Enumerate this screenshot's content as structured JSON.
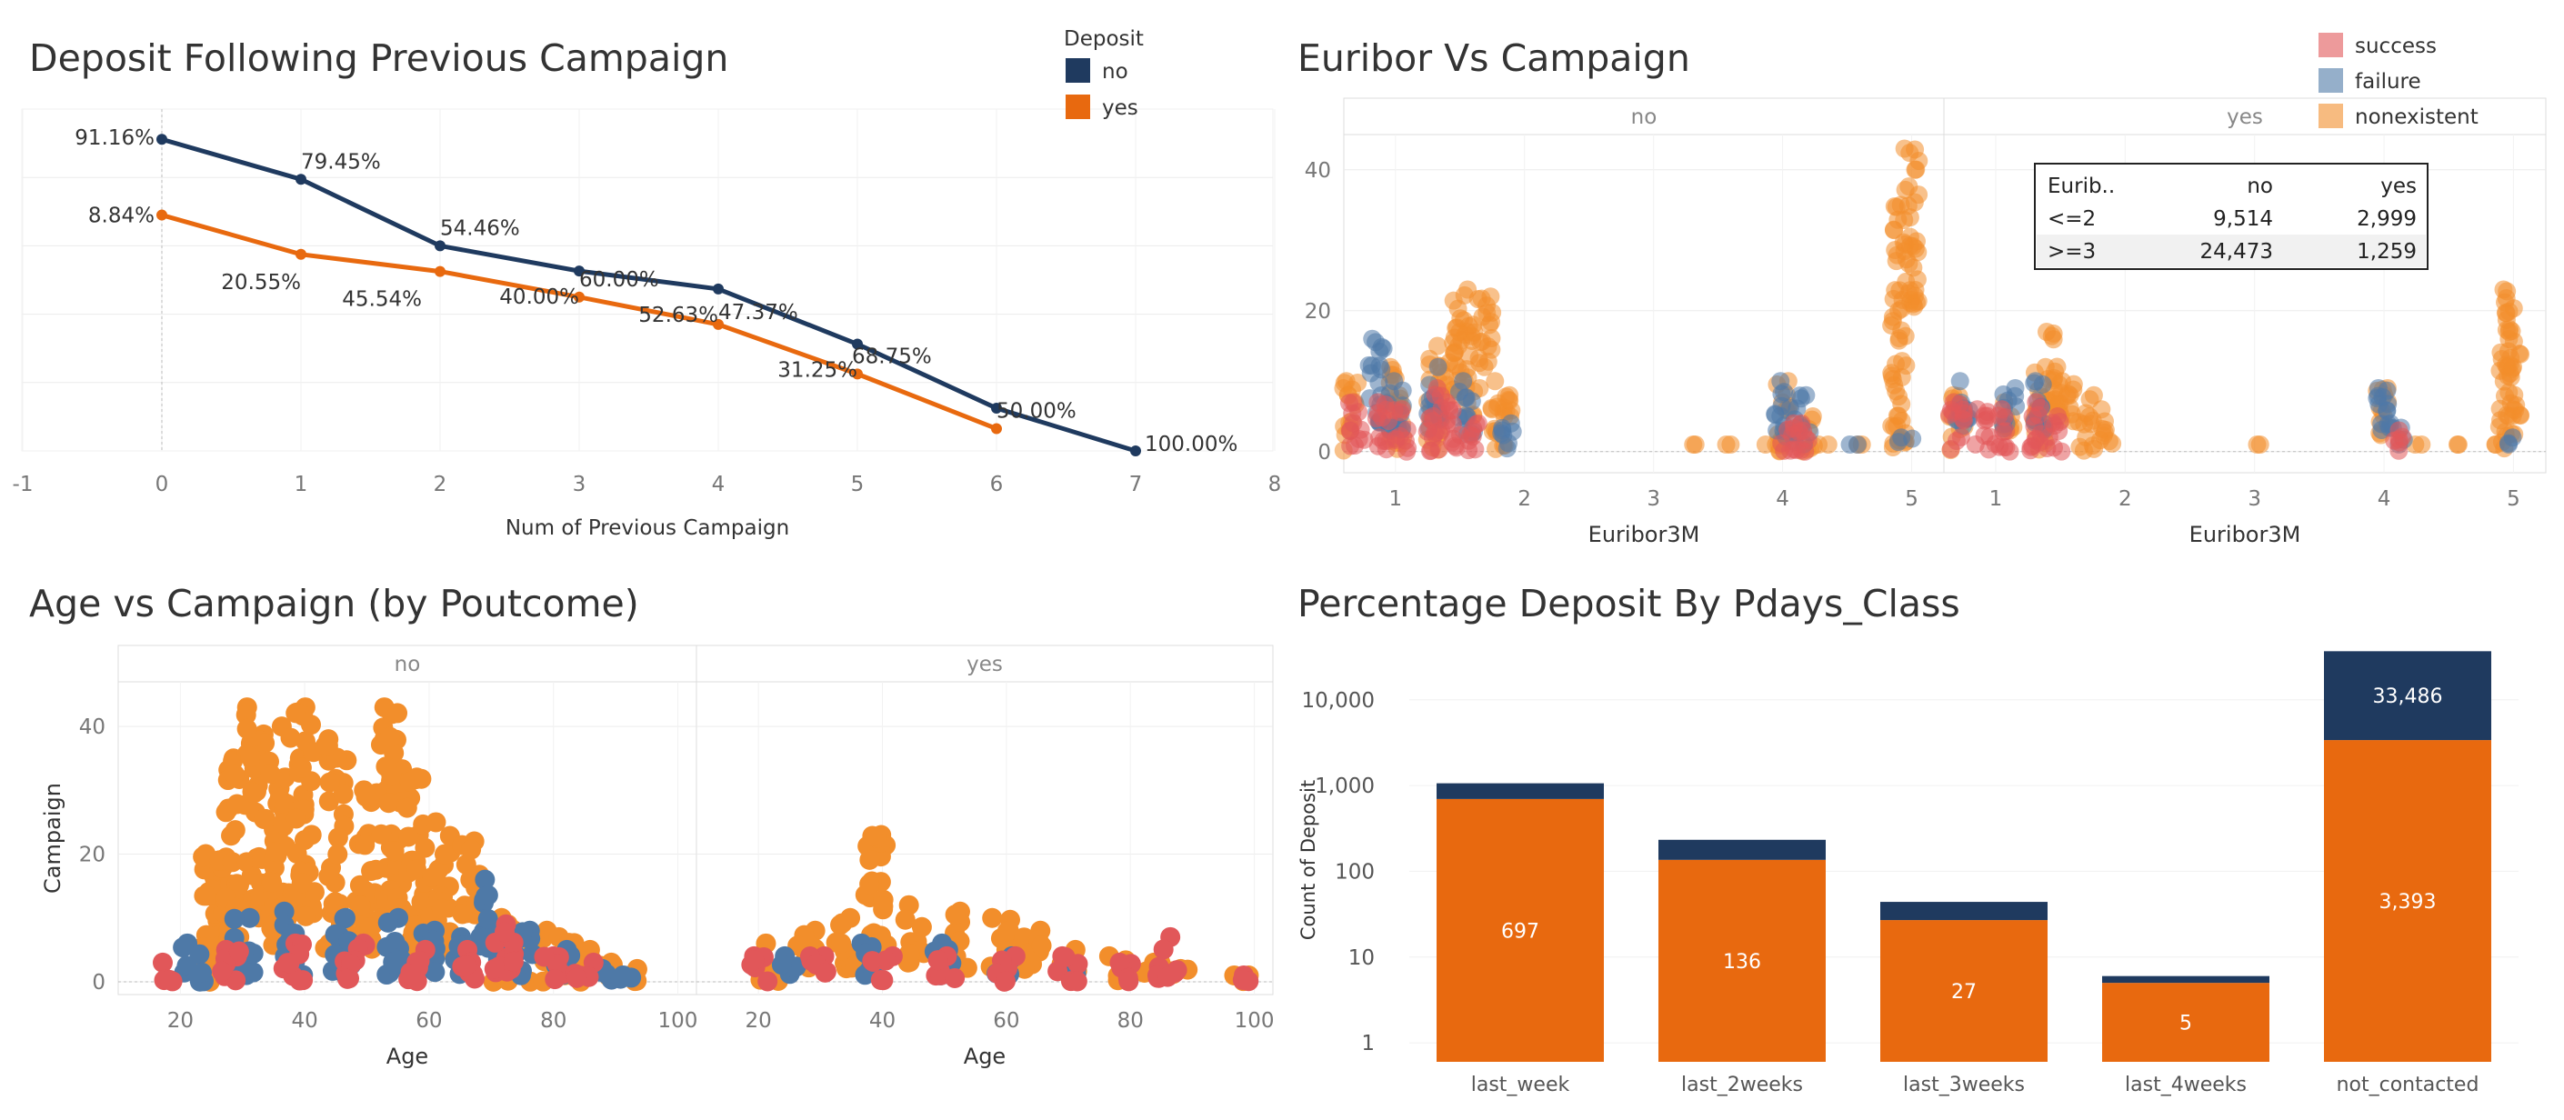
{
  "colors": {
    "no": "#1f3a5f",
    "yes": "#e8690f",
    "success": "#e15759",
    "failure": "#4e79a7",
    "nonexistent": "#f28e2b",
    "grid": "#ececec",
    "axis_text": "#777777"
  },
  "chart_data": [
    {
      "type": "line",
      "title": "Deposit Following Previous Campaign",
      "xlabel": "Num of Previous Campaign",
      "ylabel": "",
      "xlim": [
        -1,
        8
      ],
      "ylim": [
        0,
        100
      ],
      "x_ticks": [
        "-1",
        "0",
        "1",
        "2",
        "3",
        "4",
        "5",
        "6",
        "7",
        "8"
      ],
      "legend": {
        "title": "Deposit",
        "position": "top-right",
        "items": [
          "no",
          "yes"
        ]
      },
      "x": [
        0,
        1,
        2,
        3,
        4,
        5,
        6,
        7
      ],
      "series": [
        {
          "name": "no",
          "values": [
            91.16,
            79.45,
            54.46,
            40.0,
            52.63,
            31.25,
            50.0,
            100.0
          ],
          "labels": [
            "91.16%",
            "79.45%",
            "54.46%",
            "40.00%",
            "52.63%",
            "31.25%",
            "",
            "100.00%"
          ],
          "plot_y": [
            91.16,
            79.45,
            60.0,
            52.63,
            47.37,
            31.25,
            12.5,
            0.0
          ]
        },
        {
          "name": "yes",
          "values": [
            8.84,
            20.55,
            45.54,
            60.0,
            47.37,
            68.75,
            50.0,
            0.0
          ],
          "labels": [
            "8.84%",
            "20.55%",
            "45.54%",
            "60.00%",
            "47.37%",
            "68.75%",
            "50.00%",
            ""
          ],
          "plot_y": [
            69.0,
            57.5,
            52.5,
            45.0,
            37.0,
            22.5,
            6.5,
            null
          ]
        }
      ]
    },
    {
      "type": "scatter",
      "title": "Euribor Vs Campaign",
      "xlabel": "Euribor3M",
      "ylabel": "",
      "facets": [
        "no",
        "yes"
      ],
      "x_ticks": [
        "1",
        "2",
        "3",
        "4",
        "5"
      ],
      "y_ticks": [
        "0",
        "20",
        "40"
      ],
      "xlim": [
        0.6,
        5.25
      ],
      "ylim": [
        -3,
        45
      ],
      "legend": {
        "position": "top-right",
        "items": [
          "success",
          "failure",
          "nonexistent"
        ]
      },
      "table": {
        "headers": [
          "Eurib..",
          "no",
          "yes"
        ],
        "rows": [
          [
            "<=2",
            "9,514",
            "2,999"
          ],
          [
            ">=3",
            "24,473",
            "1,259"
          ]
        ]
      },
      "groups": {
        "no": {
          "nonexistent": [
            [
              0.65,
              0,
              10
            ],
            [
              1.0,
              0,
              8
            ],
            [
              1.0,
              5,
              12
            ],
            [
              1.3,
              0,
              15
            ],
            [
              1.4,
              8,
              14
            ],
            [
              1.5,
              10,
              23
            ],
            [
              1.6,
              5,
              18
            ],
            [
              1.7,
              12,
              22
            ],
            [
              1.8,
              0,
              10
            ],
            [
              1.9,
              5,
              8
            ],
            [
              3.3,
              1,
              1
            ],
            [
              3.6,
              1,
              1
            ],
            [
              3.9,
              1,
              1
            ],
            [
              4.0,
              0,
              10
            ],
            [
              4.2,
              0,
              5
            ],
            [
              4.3,
              1,
              1
            ],
            [
              4.6,
              1,
              1
            ],
            [
              4.9,
              0,
              35
            ],
            [
              5.0,
              20,
              43
            ]
          ],
          "failure": [
            [
              0.85,
              4,
              16
            ],
            [
              1.0,
              3,
              10
            ],
            [
              1.3,
              3,
              12
            ],
            [
              1.55,
              2,
              10
            ],
            [
              1.85,
              0,
              4
            ],
            [
              4.0,
              2,
              10
            ],
            [
              4.15,
              1,
              8
            ],
            [
              4.55,
              1,
              1
            ],
            [
              4.95,
              1,
              2
            ]
          ],
          "success": [
            [
              0.7,
              0,
              7
            ],
            [
              0.9,
              0,
              7
            ],
            [
              1.05,
              0,
              6
            ],
            [
              1.3,
              0,
              9
            ],
            [
              1.45,
              0,
              7
            ],
            [
              1.6,
              0,
              4
            ],
            [
              4.05,
              0,
              4
            ],
            [
              4.15,
              0,
              4
            ]
          ]
        },
        "yes": {
          "nonexistent": [
            [
              0.7,
              0,
              8
            ],
            [
              1.1,
              2,
              7
            ],
            [
              1.35,
              0,
              12
            ],
            [
              1.45,
              5,
              17
            ],
            [
              1.55,
              3,
              10
            ],
            [
              1.7,
              0,
              8
            ],
            [
              1.85,
              1,
              6
            ],
            [
              3.0,
              1,
              1
            ],
            [
              4.0,
              2,
              9
            ],
            [
              4.3,
              1,
              1
            ],
            [
              4.6,
              1,
              1
            ],
            [
              4.85,
              1,
              1
            ],
            [
              4.95,
              0,
              23
            ],
            [
              5.0,
              5,
              17
            ]
          ],
          "failure": [
            [
              0.75,
              3,
              10
            ],
            [
              1.1,
              3,
              9
            ],
            [
              1.35,
              3,
              10
            ],
            [
              4.0,
              2,
              9
            ],
            [
              4.1,
              1,
              4
            ],
            [
              4.95,
              1,
              2
            ]
          ],
          "success": [
            [
              0.7,
              0,
              7
            ],
            [
              0.9,
              0,
              6
            ],
            [
              1.05,
              0,
              6
            ],
            [
              1.3,
              0,
              7
            ],
            [
              1.45,
              0,
              5
            ],
            [
              4.1,
              0,
              3
            ]
          ]
        }
      }
    },
    {
      "type": "scatter",
      "title": "Age  vs Campaign (by Poutcome)",
      "xlabel": "Age",
      "ylabel": "Campaign",
      "facets": [
        "no",
        "yes"
      ],
      "x_ticks": [
        "20",
        "40",
        "60",
        "80",
        "100"
      ],
      "y_ticks": [
        "0",
        "20",
        "40"
      ],
      "xlim": [
        10,
        103
      ],
      "ylim": [
        -2,
        47
      ],
      "groups": {
        "no": {
          "nonexistent": [
            [
              25,
              0,
              20
            ],
            [
              28,
              5,
              35
            ],
            [
              32,
              10,
              43
            ],
            [
              36,
              5,
              40
            ],
            [
              40,
              10,
              43
            ],
            [
              45,
              5,
              38
            ],
            [
              50,
              5,
              30
            ],
            [
              54,
              10,
              43
            ],
            [
              58,
              5,
              32
            ],
            [
              62,
              5,
              25
            ],
            [
              67,
              10,
              22
            ],
            [
              72,
              0,
              10
            ],
            [
              78,
              0,
              8
            ],
            [
              82,
              0,
              7
            ],
            [
              86,
              0,
              5
            ],
            [
              90,
              0,
              3
            ],
            [
              94,
              0,
              2
            ]
          ],
          "failure": [
            [
              22,
              0,
              6
            ],
            [
              30,
              1,
              10
            ],
            [
              38,
              1,
              11
            ],
            [
              46,
              1,
              10
            ],
            [
              54,
              1,
              10
            ],
            [
              60,
              1,
              8
            ],
            [
              65,
              1,
              7
            ],
            [
              70,
              3,
              16
            ],
            [
              75,
              1,
              8
            ],
            [
              82,
              1,
              5
            ],
            [
              88,
              0,
              2
            ],
            [
              92,
              0,
              1
            ]
          ],
          "success": [
            [
              18,
              0,
              3
            ],
            [
              28,
              0,
              5
            ],
            [
              38,
              0,
              6
            ],
            [
              48,
              0,
              6
            ],
            [
              58,
              0,
              5
            ],
            [
              66,
              0,
              5
            ],
            [
              72,
              0,
              9
            ],
            [
              80,
              0,
              4
            ],
            [
              85,
              0,
              3
            ]
          ]
        },
        "yes": {
          "nonexistent": [
            [
              22,
              0,
              6
            ],
            [
              28,
              2,
              8
            ],
            [
              34,
              2,
              10
            ],
            [
              39,
              5,
              23
            ],
            [
              45,
              3,
              12
            ],
            [
              52,
              2,
              11
            ],
            [
              59,
              2,
              10
            ],
            [
              64,
              2,
              8
            ],
            [
              70,
              1,
              5
            ],
            [
              78,
              0,
              4
            ],
            [
              84,
              0,
              3
            ],
            [
              88,
              0,
              2
            ],
            [
              98,
              0,
              1
            ]
          ],
          "failure": [
            [
              25,
              1,
              4
            ],
            [
              38,
              1,
              6
            ],
            [
              50,
              1,
              6
            ],
            [
              60,
              1,
              4
            ],
            [
              70,
              0,
              3
            ]
          ],
          "success": [
            [
              20,
              0,
              4
            ],
            [
              30,
              0,
              4
            ],
            [
              40,
              0,
              4
            ],
            [
              50,
              0,
              4
            ],
            [
              60,
              0,
              4
            ],
            [
              70,
              0,
              4
            ],
            [
              80,
              0,
              3
            ],
            [
              86,
              0,
              7
            ],
            [
              98,
              0,
              1
            ]
          ]
        }
      }
    },
    {
      "type": "bar",
      "title": "Percentage Deposit By Pdays_Class",
      "xlabel": "",
      "ylabel": "Count of Deposit",
      "scale": "log",
      "y_ticks": [
        "1",
        "10",
        "100",
        "1,000",
        "10,000"
      ],
      "categories": [
        "last_week",
        "last_2weeks",
        "last_3weeks",
        "last_4weeks",
        "not_contacted"
      ],
      "series": [
        {
          "name": "yes",
          "values": [
            697,
            136,
            27,
            5,
            3393
          ],
          "labels": [
            "697",
            "136",
            "27",
            "5",
            "3,393"
          ]
        },
        {
          "name": "no",
          "values": [
            1063,
            233,
            44,
            6,
            36879
          ],
          "labels": [
            "",
            "",
            "",
            "",
            "33,486"
          ]
        }
      ]
    }
  ]
}
